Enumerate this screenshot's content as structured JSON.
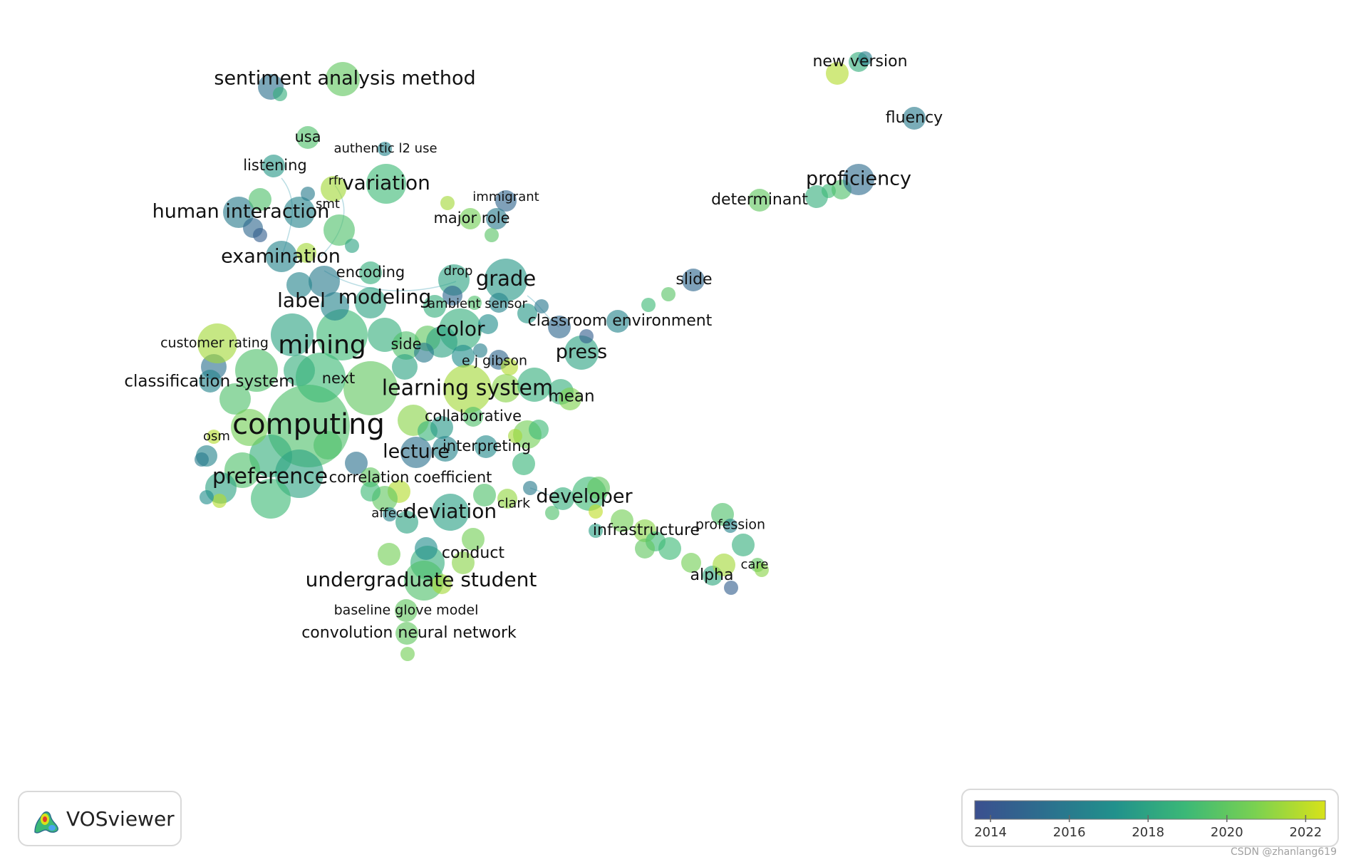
{
  "app": {
    "logo_text": "VOSviewer",
    "watermark": "CSDN @zhanlang619"
  },
  "color_scale": {
    "ticks": [
      "2014",
      "2016",
      "2018",
      "2020",
      "2022"
    ],
    "min_year": 2013.6,
    "max_year": 2022.5,
    "stops": [
      "#3b4f8f",
      "#2c6f8e",
      "#21918c",
      "#3bb877",
      "#7ad151",
      "#d8e219"
    ]
  },
  "network": {
    "nodes": [
      {
        "label": "computing",
        "year": 2019.5,
        "weight": 10
      },
      {
        "label": "mining",
        "year": 2019.0,
        "weight": 7
      },
      {
        "label": "preference",
        "year": 2018.5,
        "weight": 6
      },
      {
        "label": "learning system",
        "year": 2021.5,
        "weight": 6
      },
      {
        "label": "undergraduate student",
        "year": 2019.5,
        "weight": 5
      },
      {
        "label": "sentiment analysis method",
        "year": 2020.0,
        "weight": 4
      },
      {
        "label": "variation",
        "year": 2019.0,
        "weight": 4
      },
      {
        "label": "human interaction",
        "year": 2016.5,
        "weight": 4
      },
      {
        "label": "examination",
        "year": 2016.5,
        "weight": 4
      },
      {
        "label": "label",
        "year": 2018.5,
        "weight": 4
      },
      {
        "label": "modeling",
        "year": 2019.0,
        "weight": 4
      },
      {
        "label": "grade",
        "year": 2017.5,
        "weight": 4
      },
      {
        "label": "color",
        "year": 2018.0,
        "weight": 4
      },
      {
        "label": "deviation",
        "year": 2017.8,
        "weight": 4
      },
      {
        "label": "lecture",
        "year": 2015.5,
        "weight": 4
      },
      {
        "label": "developer",
        "year": 2019.0,
        "weight": 4
      },
      {
        "label": "proficiency",
        "year": 2015.2,
        "weight": 4
      },
      {
        "label": "press",
        "year": 2018.2,
        "weight": 4
      },
      {
        "label": "customer rating",
        "year": 2021.5,
        "weight": 3
      },
      {
        "label": "classification system",
        "year": 2016.5,
        "weight": 3
      },
      {
        "label": "next",
        "year": 2019.5,
        "weight": 3
      },
      {
        "label": "side",
        "year": 2019.5,
        "weight": 3
      },
      {
        "label": "e j gibson",
        "year": 2021.0,
        "weight": 2
      },
      {
        "label": "collaborative",
        "year": 2019.5,
        "weight": 3
      },
      {
        "label": "interpreting",
        "year": 2017.0,
        "weight": 3
      },
      {
        "label": "correlation coefficient",
        "year": 2019.0,
        "weight": 3
      },
      {
        "label": "mean",
        "year": 2020.0,
        "weight": 3
      },
      {
        "label": "osm",
        "year": 2021.8,
        "weight": 2
      },
      {
        "label": "affect",
        "year": 2017.5,
        "weight": 2
      },
      {
        "label": "clark",
        "year": 2021.0,
        "weight": 2
      },
      {
        "label": "conduct",
        "year": 2020.5,
        "weight": 3
      },
      {
        "label": "baseline glove model",
        "year": 2020.0,
        "weight": 2
      },
      {
        "label": "convolution neural network",
        "year": 2020.0,
        "weight": 3
      },
      {
        "label": "infrastructure",
        "year": 2020.0,
        "weight": 3
      },
      {
        "label": "profession",
        "year": 2019.5,
        "weight": 2
      },
      {
        "label": "alpha",
        "year": 2018.2,
        "weight": 3
      },
      {
        "label": "care",
        "year": 2020.5,
        "weight": 2
      },
      {
        "label": "classroom environment",
        "year": 2015.5,
        "weight": 3
      },
      {
        "label": "slide",
        "year": 2015.0,
        "weight": 2
      },
      {
        "label": "determinant",
        "year": 2020.0,
        "weight": 3
      },
      {
        "label": "fluency",
        "year": 2016.0,
        "weight": 3
      },
      {
        "label": "new version",
        "year": 2019.0,
        "weight": 3
      },
      {
        "label": "usa",
        "year": 2019.5,
        "weight": 2
      },
      {
        "label": "authentic l2 use",
        "year": 2016.0,
        "weight": 2
      },
      {
        "label": "listening",
        "year": 2017.5,
        "weight": 2
      },
      {
        "label": "rfr",
        "year": 2021.8,
        "weight": 2
      },
      {
        "label": "smt",
        "year": 2016.5,
        "weight": 2
      },
      {
        "label": "immigrant",
        "year": 2014.8,
        "weight": 2
      },
      {
        "label": "major role",
        "year": 2020.5,
        "weight": 2
      },
      {
        "label": "encoding",
        "year": 2018.5,
        "weight": 2
      },
      {
        "label": "drop",
        "year": 2018.5,
        "weight": 2
      },
      {
        "label": "ambient sensor",
        "year": 2018.0,
        "weight": 2
      }
    ]
  }
}
